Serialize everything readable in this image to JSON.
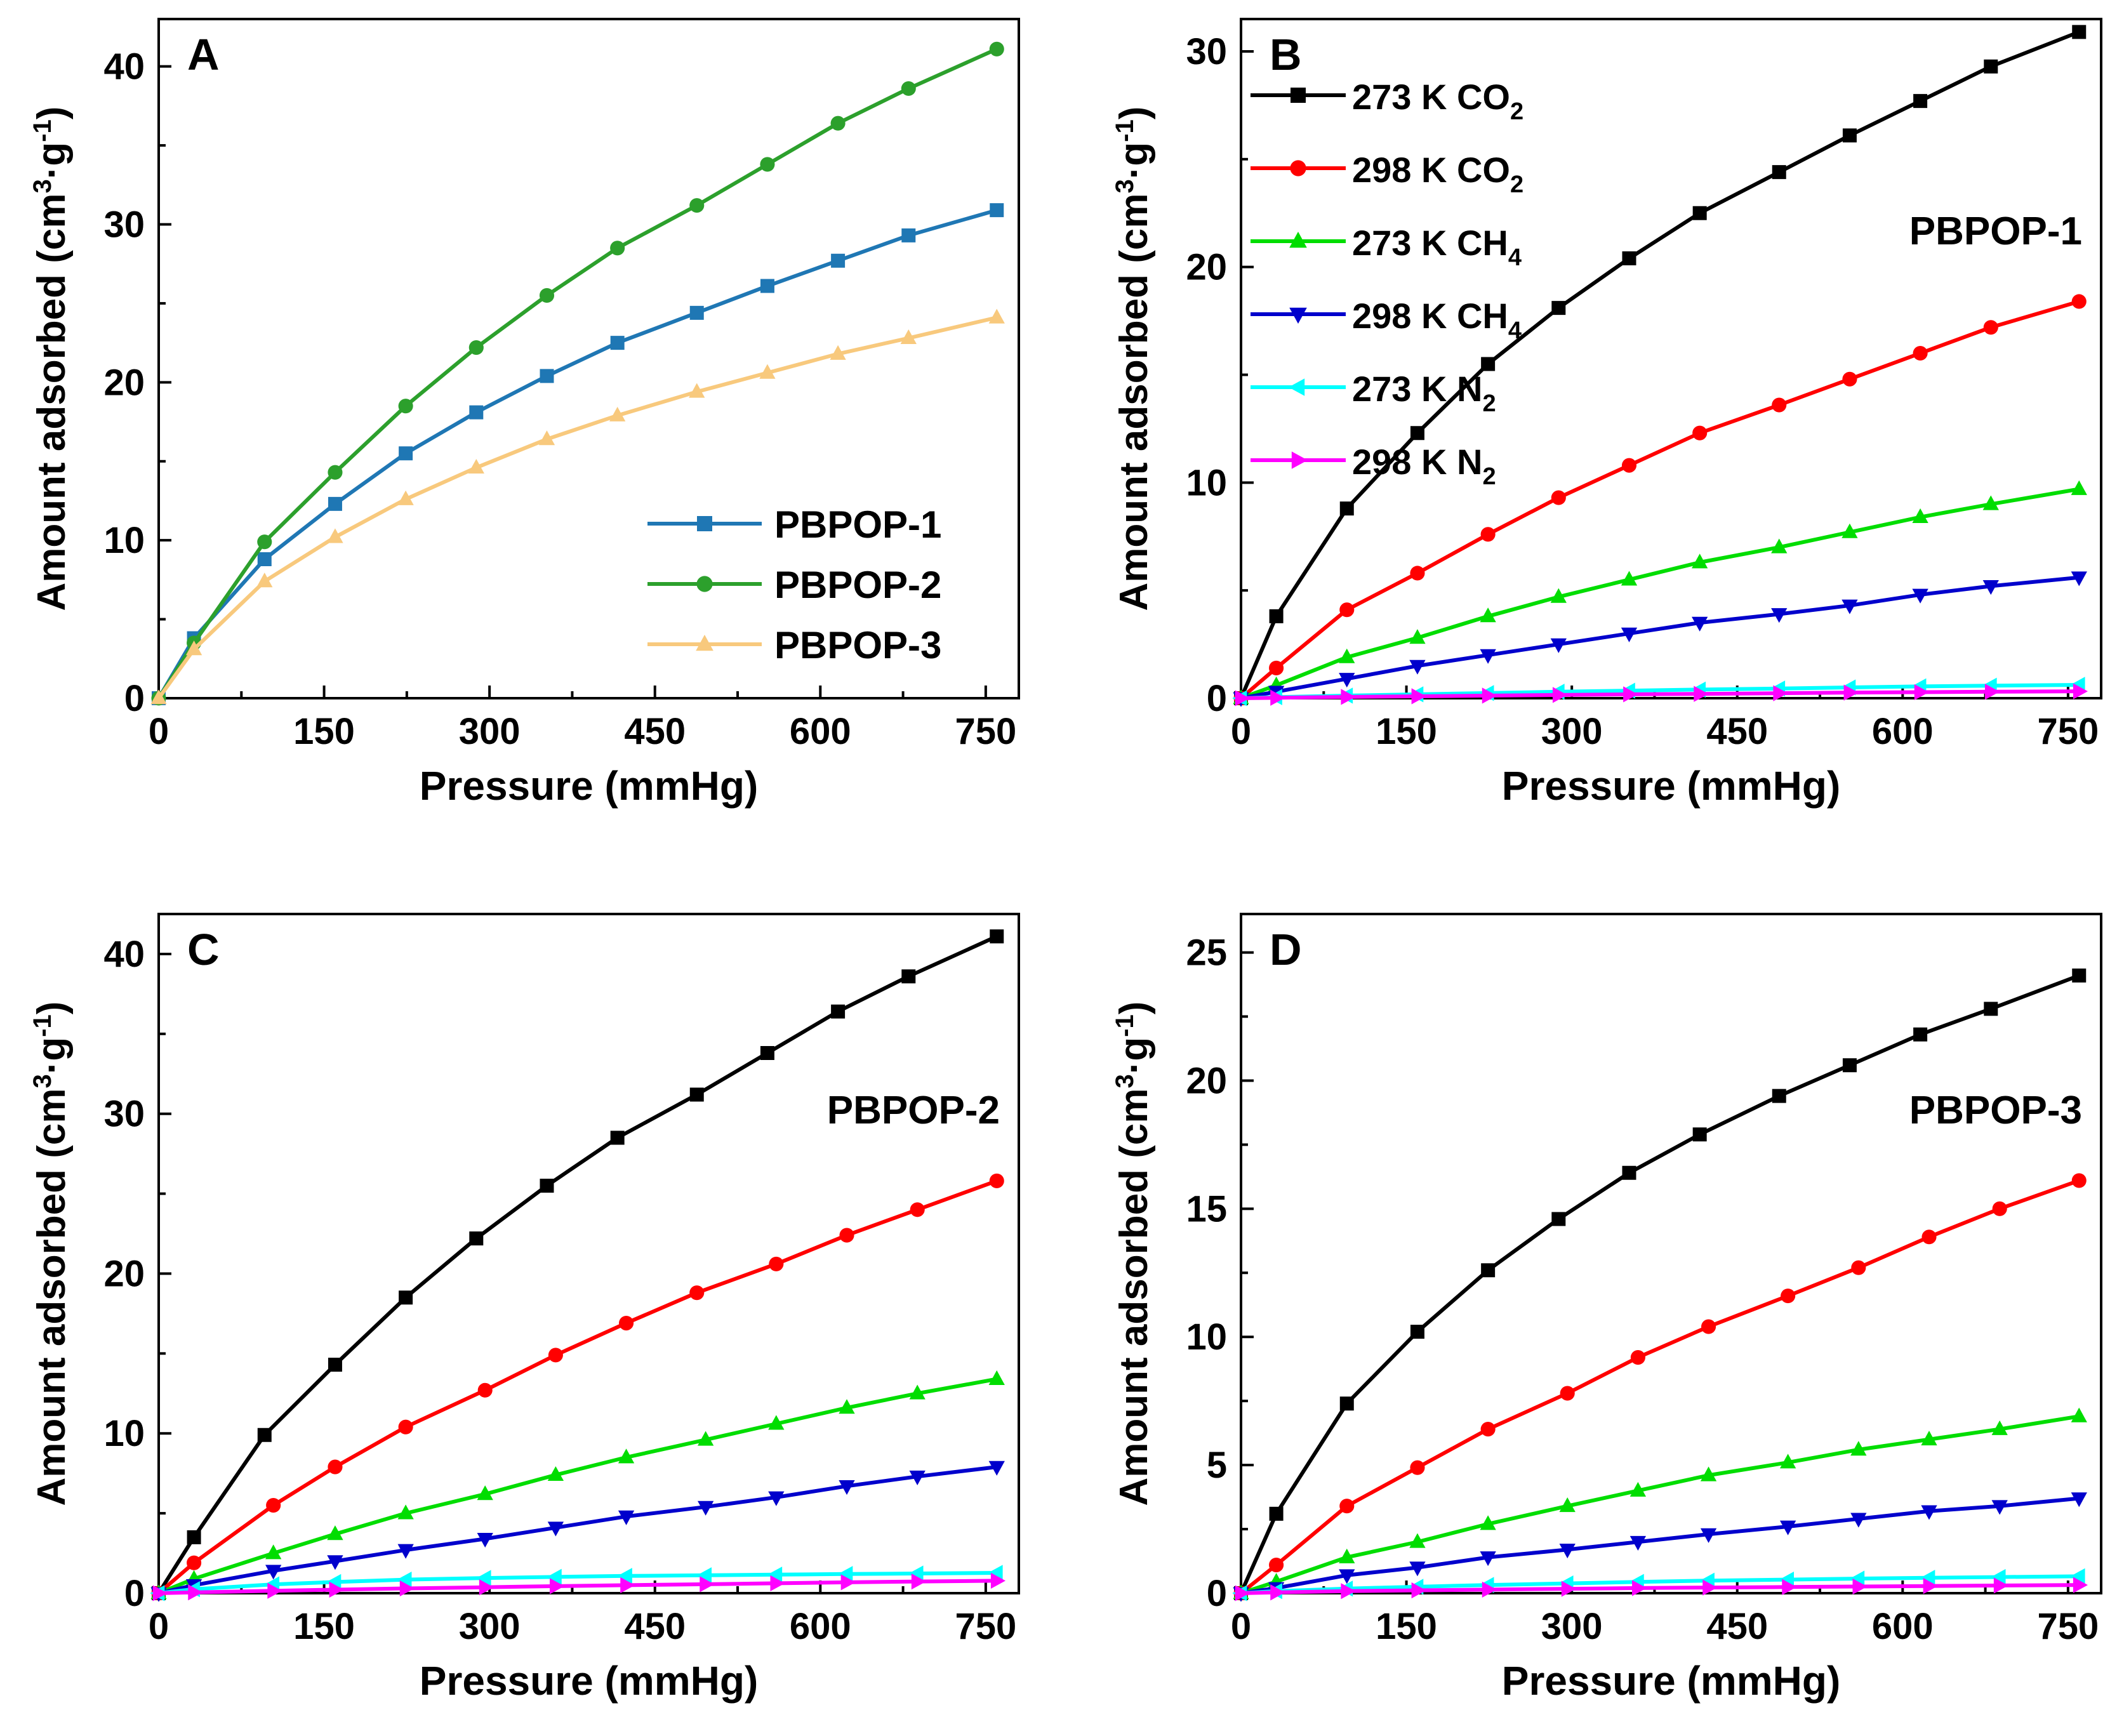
{
  "chart_data": [
    {
      "panel": "A",
      "type": "line",
      "xlabel": "Pressure (mmHg)",
      "ylabel_main": "Amount adsorbed (cm",
      "ylabel_sup1": "3",
      "ylabel_mid": "·g",
      "ylabel_sup2": "-1",
      "ylabel_end": ")",
      "xlim": [
        0,
        780
      ],
      "ylim": [
        0,
        43
      ],
      "xticks": [
        "0",
        "150",
        "300",
        "450",
        "600",
        "750"
      ],
      "xtick_values": [
        0,
        150,
        300,
        450,
        600,
        750
      ],
      "yticks": [
        "0",
        "10",
        "20",
        "30",
        "40"
      ],
      "ytick_values": [
        0,
        10,
        20,
        30,
        40
      ],
      "label": "",
      "legend_position": "bottom-right",
      "series": [
        {
          "name": "PBPOP-1",
          "color": "#1f77b4",
          "marker": "square",
          "x": [
            0,
            32,
            96,
            160,
            224,
            288,
            352,
            416,
            488,
            552,
            616,
            680,
            760
          ],
          "y": [
            0,
            3.8,
            8.8,
            12.3,
            15.5,
            18.1,
            20.4,
            22.5,
            24.4,
            26.1,
            27.7,
            29.3,
            30.9
          ]
        },
        {
          "name": "PBPOP-2",
          "color": "#2ca02c",
          "marker": "circle",
          "x": [
            0,
            32,
            96,
            160,
            224,
            288,
            352,
            416,
            488,
            552,
            616,
            680,
            760
          ],
          "y": [
            0,
            3.5,
            9.9,
            14.3,
            18.5,
            22.2,
            25.5,
            28.5,
            31.2,
            33.8,
            36.4,
            38.6,
            41.1
          ]
        },
        {
          "name": "PBPOP-3",
          "color": "#f8c97d",
          "marker": "triangle-up",
          "x": [
            0,
            32,
            96,
            160,
            224,
            288,
            352,
            416,
            488,
            552,
            616,
            680,
            760
          ],
          "y": [
            0,
            3.1,
            7.4,
            10.2,
            12.6,
            14.6,
            16.4,
            17.9,
            19.4,
            20.6,
            21.8,
            22.8,
            24.1
          ]
        }
      ]
    },
    {
      "panel": "B",
      "type": "line",
      "xlabel": "Pressure (mmHg)",
      "ylabel_main": "Amount adsorbed (cm",
      "ylabel_sup1": "3",
      "ylabel_mid": "·g",
      "ylabel_sup2": "-1",
      "ylabel_end": ")",
      "xlim": [
        0,
        780
      ],
      "ylim": [
        0,
        31.5
      ],
      "xticks": [
        "0",
        "150",
        "300",
        "450",
        "600",
        "750"
      ],
      "xtick_values": [
        0,
        150,
        300,
        450,
        600,
        750
      ],
      "yticks": [
        "0",
        "10",
        "20",
        "30"
      ],
      "ytick_values": [
        0,
        10,
        20,
        30
      ],
      "label": "PBPOP-1",
      "legend_position": "top-left",
      "series": [
        {
          "name": "273 K CO2",
          "name_base": "273 K CO",
          "name_sub": "2",
          "color": "#000000",
          "marker": "square",
          "x": [
            0,
            32,
            96,
            160,
            224,
            288,
            352,
            416,
            488,
            552,
            616,
            680,
            760
          ],
          "y": [
            0,
            3.8,
            8.8,
            12.3,
            15.5,
            18.1,
            20.4,
            22.5,
            24.4,
            26.1,
            27.7,
            29.3,
            30.9
          ]
        },
        {
          "name": "298 K CO2",
          "name_base": "298 K CO",
          "name_sub": "2",
          "color": "#ff0000",
          "marker": "circle",
          "x": [
            0,
            32,
            96,
            160,
            224,
            288,
            352,
            416,
            488,
            552,
            616,
            680,
            760
          ],
          "y": [
            0,
            1.4,
            4.1,
            5.8,
            7.6,
            9.3,
            10.8,
            12.3,
            13.6,
            14.8,
            16.0,
            17.2,
            18.4
          ]
        },
        {
          "name": "273 K CH4",
          "name_base": "273 K CH",
          "name_sub": "4",
          "color": "#00dd00",
          "marker": "triangle-up",
          "x": [
            0,
            32,
            96,
            160,
            224,
            288,
            352,
            416,
            488,
            552,
            616,
            680,
            760
          ],
          "y": [
            0,
            0.6,
            1.9,
            2.8,
            3.8,
            4.7,
            5.5,
            6.3,
            7.0,
            7.7,
            8.4,
            9.0,
            9.7
          ]
        },
        {
          "name": "298 K CH4",
          "name_base": "298 K CH",
          "name_sub": "4",
          "color": "#0000cc",
          "marker": "triangle-down",
          "x": [
            0,
            32,
            96,
            160,
            224,
            288,
            352,
            416,
            488,
            552,
            616,
            680,
            760
          ],
          "y": [
            0,
            0.3,
            0.9,
            1.5,
            2.0,
            2.5,
            3.0,
            3.5,
            3.9,
            4.3,
            4.8,
            5.2,
            5.6
          ]
        },
        {
          "name": "273 K N2",
          "name_base": "273 K N",
          "name_sub": "2",
          "color": "#00ffff",
          "marker": "triangle-left",
          "x": [
            0,
            32,
            96,
            160,
            224,
            288,
            352,
            416,
            488,
            552,
            616,
            680,
            760
          ],
          "y": [
            0,
            0.05,
            0.12,
            0.18,
            0.24,
            0.3,
            0.35,
            0.4,
            0.45,
            0.5,
            0.55,
            0.58,
            0.62
          ]
        },
        {
          "name": "298 K N2",
          "name_base": "298 K N",
          "name_sub": "2",
          "color": "#ff00ff",
          "marker": "triangle-right",
          "x": [
            0,
            32,
            96,
            160,
            224,
            288,
            352,
            416,
            488,
            552,
            616,
            680,
            760
          ],
          "y": [
            0,
            0.02,
            0.06,
            0.09,
            0.12,
            0.15,
            0.18,
            0.2,
            0.23,
            0.26,
            0.28,
            0.3,
            0.32
          ]
        }
      ]
    },
    {
      "panel": "C",
      "type": "line",
      "xlabel": "Pressure (mmHg)",
      "ylabel_main": "Amount adsorbed (cm",
      "ylabel_sup1": "3",
      "ylabel_mid": "·g",
      "ylabel_sup2": "-1",
      "ylabel_end": ")",
      "xlim": [
        0,
        780
      ],
      "ylim": [
        0,
        42.5
      ],
      "xticks": [
        "0",
        "150",
        "300",
        "450",
        "600",
        "750"
      ],
      "xtick_values": [
        0,
        150,
        300,
        450,
        600,
        750
      ],
      "yticks": [
        "0",
        "10",
        "20",
        "30",
        "40"
      ],
      "ytick_values": [
        0,
        10,
        20,
        30,
        40
      ],
      "label": "PBPOP-2",
      "series": [
        {
          "name": "273 K CO2",
          "color": "#000000",
          "marker": "square",
          "x": [
            0,
            32,
            96,
            160,
            224,
            288,
            352,
            416,
            488,
            552,
            616,
            680,
            760
          ],
          "y": [
            0,
            3.5,
            9.9,
            14.3,
            18.5,
            22.2,
            25.5,
            28.5,
            31.2,
            33.8,
            36.4,
            38.6,
            41.1
          ]
        },
        {
          "name": "298 K CO2",
          "color": "#ff0000",
          "marker": "circle",
          "x": [
            0,
            32,
            104,
            160,
            224,
            296,
            360,
            424,
            488,
            560,
            624,
            688,
            760
          ],
          "y": [
            0,
            1.9,
            5.5,
            7.9,
            10.4,
            12.7,
            14.9,
            16.9,
            18.8,
            20.6,
            22.4,
            24.0,
            25.8
          ]
        },
        {
          "name": "273 K CH4",
          "color": "#00dd00",
          "marker": "triangle-up",
          "x": [
            0,
            32,
            104,
            160,
            224,
            296,
            360,
            424,
            496,
            560,
            624,
            688,
            760
          ],
          "y": [
            0,
            0.9,
            2.5,
            3.7,
            5.0,
            6.2,
            7.4,
            8.5,
            9.6,
            10.6,
            11.6,
            12.5,
            13.4
          ]
        },
        {
          "name": "298 K CH4",
          "color": "#0000cc",
          "marker": "triangle-down",
          "x": [
            0,
            32,
            104,
            160,
            224,
            296,
            360,
            424,
            496,
            560,
            624,
            688,
            760
          ],
          "y": [
            0,
            0.5,
            1.4,
            2.0,
            2.7,
            3.4,
            4.1,
            4.8,
            5.4,
            6.0,
            6.7,
            7.3,
            7.9
          ]
        },
        {
          "name": "273 K N2",
          "color": "#00ffff",
          "marker": "triangle-left",
          "x": [
            0,
            32,
            104,
            160,
            224,
            296,
            360,
            424,
            496,
            560,
            624,
            688,
            760
          ],
          "y": [
            0,
            0.25,
            0.55,
            0.7,
            0.85,
            0.95,
            1.02,
            1.08,
            1.12,
            1.16,
            1.2,
            1.23,
            1.27
          ]
        },
        {
          "name": "298 K N2",
          "color": "#ff00ff",
          "marker": "triangle-right",
          "x": [
            0,
            32,
            104,
            160,
            224,
            296,
            360,
            424,
            496,
            560,
            624,
            688,
            760
          ],
          "y": [
            0,
            0.05,
            0.15,
            0.22,
            0.3,
            0.37,
            0.44,
            0.5,
            0.56,
            0.62,
            0.68,
            0.73,
            0.78
          ]
        }
      ]
    },
    {
      "panel": "D",
      "type": "line",
      "xlabel": "Pressure (mmHg)",
      "ylabel_main": "Amount adsorbed (cm",
      "ylabel_sup1": "3",
      "ylabel_mid": "·g",
      "ylabel_sup2": "-1",
      "ylabel_end": ")",
      "xlim": [
        0,
        780
      ],
      "ylim": [
        0,
        26.5
      ],
      "xticks": [
        "0",
        "150",
        "300",
        "450",
        "600",
        "750"
      ],
      "xtick_values": [
        0,
        150,
        300,
        450,
        600,
        750
      ],
      "yticks": [
        "0",
        "5",
        "10",
        "15",
        "20",
        "25"
      ],
      "ytick_values": [
        0,
        5,
        10,
        15,
        20,
        25
      ],
      "label": "PBPOP-3",
      "series": [
        {
          "name": "273 K CO2",
          "color": "#000000",
          "marker": "square",
          "x": [
            0,
            32,
            96,
            160,
            224,
            288,
            352,
            416,
            488,
            552,
            616,
            680,
            760
          ],
          "y": [
            0,
            3.1,
            7.4,
            10.2,
            12.6,
            14.6,
            16.4,
            17.9,
            19.4,
            20.6,
            21.8,
            22.8,
            24.1
          ]
        },
        {
          "name": "298 K CO2",
          "color": "#ff0000",
          "marker": "circle",
          "x": [
            0,
            32,
            96,
            160,
            224,
            296,
            360,
            424,
            496,
            560,
            624,
            688,
            760
          ],
          "y": [
            0,
            1.1,
            3.4,
            4.9,
            6.4,
            7.8,
            9.2,
            10.4,
            11.6,
            12.7,
            13.9,
            15.0,
            16.1
          ]
        },
        {
          "name": "273 K CH4",
          "color": "#00dd00",
          "marker": "triangle-up",
          "x": [
            0,
            32,
            96,
            160,
            224,
            296,
            360,
            424,
            496,
            560,
            624,
            688,
            760
          ],
          "y": [
            0,
            0.45,
            1.4,
            2.0,
            2.7,
            3.4,
            4.0,
            4.6,
            5.1,
            5.6,
            6.0,
            6.4,
            6.9
          ]
        },
        {
          "name": "298 K CH4",
          "color": "#0000cc",
          "marker": "triangle-down",
          "x": [
            0,
            32,
            96,
            160,
            224,
            296,
            360,
            424,
            496,
            560,
            624,
            688,
            760
          ],
          "y": [
            0,
            0.2,
            0.7,
            1.0,
            1.4,
            1.7,
            2.0,
            2.3,
            2.6,
            2.9,
            3.2,
            3.4,
            3.7
          ]
        },
        {
          "name": "273 K N2",
          "color": "#00ffff",
          "marker": "triangle-left",
          "x": [
            0,
            32,
            96,
            160,
            224,
            296,
            360,
            424,
            496,
            560,
            624,
            688,
            760
          ],
          "y": [
            0,
            0.08,
            0.18,
            0.25,
            0.32,
            0.38,
            0.44,
            0.49,
            0.53,
            0.57,
            0.6,
            0.63,
            0.66
          ]
        },
        {
          "name": "298 K N2",
          "color": "#ff00ff",
          "marker": "triangle-right",
          "x": [
            0,
            32,
            96,
            160,
            224,
            296,
            360,
            424,
            496,
            560,
            624,
            688,
            760
          ],
          "y": [
            0,
            0.03,
            0.08,
            0.11,
            0.14,
            0.17,
            0.2,
            0.22,
            0.24,
            0.26,
            0.28,
            0.3,
            0.32
          ]
        }
      ]
    }
  ]
}
